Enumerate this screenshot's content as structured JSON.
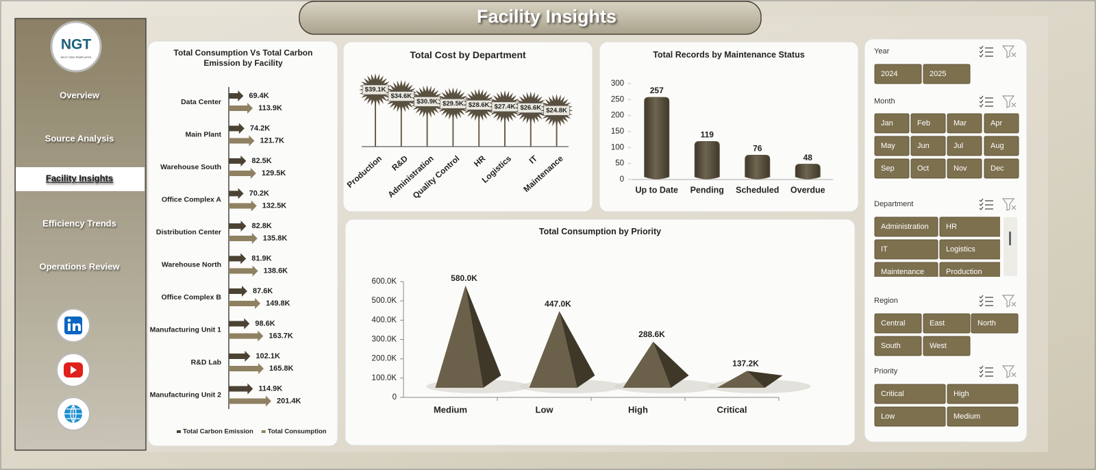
{
  "header": {
    "title": "Facility Insights"
  },
  "logo": {
    "mark": "NGT",
    "tagline": "NEXT GEN TEMPLATES"
  },
  "nav": [
    "Overview",
    "Source Analysis",
    "Facility Insights",
    "Efficiency Trends",
    "Operations Review"
  ],
  "chart_data": [
    {
      "type": "arrow-bar",
      "title": "Total Consumption Vs Total Carbon Emission by Facility",
      "categories": [
        "Data Center",
        "Main Plant",
        "Warehouse South",
        "Office Complex A",
        "Distribution Center",
        "Warehouse North",
        "Office Complex B",
        "Manufacturing Unit 1",
        "R&D Lab",
        "Manufacturing Unit 2"
      ],
      "series": [
        {
          "name": "Total Carbon Emission",
          "color": "#4b4233",
          "values": [
            69400,
            74200,
            82500,
            70200,
            82800,
            81900,
            87600,
            98600,
            102100,
            114900
          ],
          "value_labels": [
            "69.4K",
            "74.2K",
            "82.5K",
            "70.2K",
            "82.8K",
            "81.9K",
            "87.6K",
            "98.6K",
            "102.1K",
            "114.9K"
          ]
        },
        {
          "name": "Total Consumption",
          "color": "#8f8162",
          "values": [
            113900,
            121700,
            129500,
            132500,
            135800,
            138600,
            149800,
            163700,
            165800,
            201400
          ],
          "value_labels": [
            "113.9K",
            "121.7K",
            "129.5K",
            "132.5K",
            "135.8K",
            "138.6K",
            "149.8K",
            "163.7K",
            "165.8K",
            "201.4K"
          ]
        }
      ],
      "legend": "bottom"
    },
    {
      "type": "lollipop",
      "title": "Total Cost by Department",
      "categories": [
        "Production",
        "R&D",
        "Administration",
        "Quality Control",
        "HR",
        "Logistics",
        "IT",
        "Maintenance"
      ],
      "values": [
        39100,
        34600,
        30900,
        29500,
        28600,
        27400,
        26600,
        24800
      ],
      "value_labels": [
        "$39.1K",
        "$34.6K",
        "$30.9K",
        "$29.5K",
        "$28.6K",
        "$27.4K",
        "$26.6K",
        "$24.8K"
      ],
      "color": "#5a5040"
    },
    {
      "type": "bar",
      "title": "Total Records by Maintenance Status",
      "categories": [
        "Up to Date",
        "Pending",
        "Scheduled",
        "Overdue"
      ],
      "values": [
        257,
        119,
        76,
        48
      ],
      "color": "#5c5341",
      "ylim": [
        0,
        300
      ],
      "yticks": [
        0,
        50,
        100,
        150,
        200,
        250,
        300
      ]
    },
    {
      "type": "pyramid",
      "title": "Total Consumption by Priority",
      "categories": [
        "Medium",
        "Low",
        "High",
        "Critical"
      ],
      "values": [
        580000,
        447000,
        288600,
        137200
      ],
      "value_labels": [
        "580.0K",
        "447.0K",
        "288.6K",
        "137.2K"
      ],
      "color": "#6b6049",
      "ylim": [
        0,
        600000
      ],
      "yticks": [
        0,
        {
          "value": 100000,
          "label": "100.0K"
        },
        {
          "value": 200000,
          "label": "200.0K"
        },
        {
          "value": 300000,
          "label": "300.0K"
        },
        {
          "value": 400000,
          "label": "400.0K"
        },
        {
          "value": 500000,
          "label": "500.0K"
        },
        {
          "value": 600000,
          "label": "600.0K"
        }
      ]
    }
  ],
  "slicers": [
    {
      "title": "Year",
      "items": [
        "2024",
        "2025"
      ]
    },
    {
      "title": "Month",
      "items": [
        "Jan",
        "Feb",
        "Mar",
        "Apr",
        "May",
        "Jun",
        "Jul",
        "Aug",
        "Sep",
        "Oct",
        "Nov",
        "Dec"
      ]
    },
    {
      "title": "Department",
      "items": [
        "Administration",
        "HR",
        "IT",
        "Logistics",
        "Maintenance",
        "Production"
      ]
    },
    {
      "title": "Region",
      "items": [
        "Central",
        "East",
        "North",
        "South",
        "West"
      ]
    },
    {
      "title": "Priority",
      "items": [
        "Critical",
        "High",
        "Low",
        "Medium"
      ]
    }
  ]
}
